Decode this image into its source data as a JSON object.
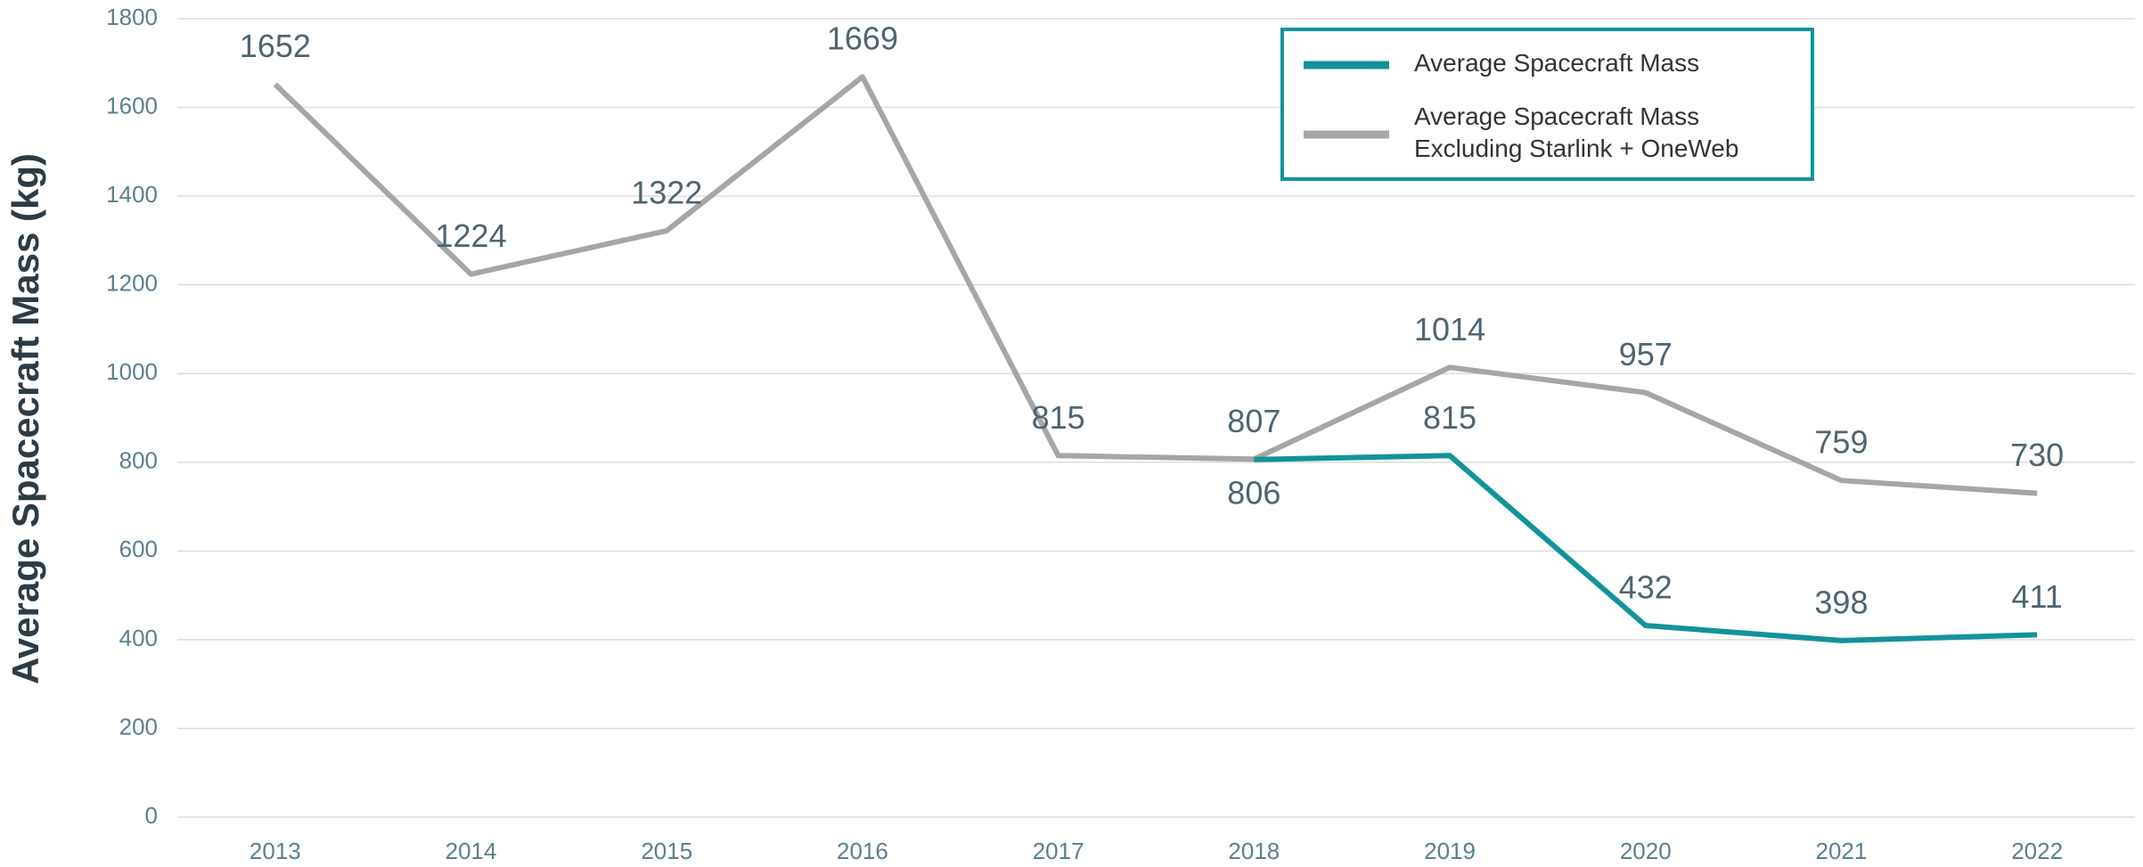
{
  "chart_data": {
    "type": "line",
    "y_label": "Average Spacecraft Mass (kg)",
    "categories": [
      "2013",
      "2014",
      "2015",
      "2016",
      "2017",
      "2018",
      "2019",
      "2020",
      "2021",
      "2022"
    ],
    "series": [
      {
        "name": "Average Spacecraft Mass",
        "color": "#13939a",
        "values": [
          null,
          null,
          null,
          null,
          null,
          806,
          815,
          432,
          398,
          411
        ]
      },
      {
        "name": "Average Spacecraft Mass\nExcluding Starlink + OneWeb",
        "color": "#a6a6a6",
        "values": [
          1652,
          1224,
          1322,
          1669,
          815,
          807,
          1014,
          957,
          759,
          730
        ]
      }
    ],
    "ylim": [
      0,
      1800
    ],
    "yticks": [
      0,
      200,
      400,
      600,
      800,
      1000,
      1200,
      1400,
      1600,
      1800
    ],
    "grid": true,
    "legend": "top-right"
  }
}
